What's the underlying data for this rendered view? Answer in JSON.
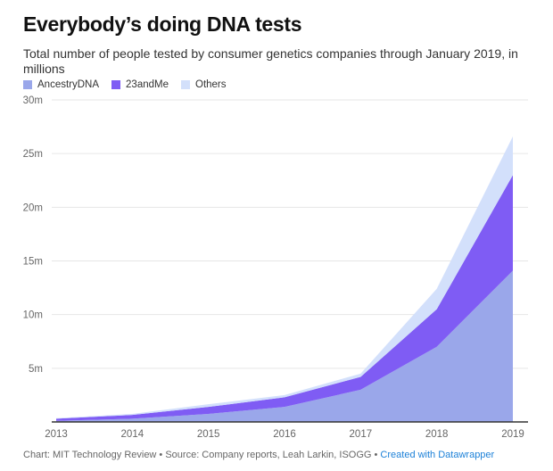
{
  "chart_data": {
    "type": "area",
    "stacked": true,
    "title": "Everybody’s doing DNA tests",
    "subtitle": "Total number of people tested by consumer genetics companies through January 2019, in millions",
    "x": [
      "2013",
      "2014",
      "2015",
      "2016",
      "2017",
      "2018",
      "2019"
    ],
    "series": [
      {
        "name": "AncestryDNA",
        "color": "#9aa7ea",
        "values": [
          0.1,
          0.3,
          0.75,
          1.4,
          3.0,
          7.0,
          14.1
        ]
      },
      {
        "name": "23andMe",
        "color": "#7f5cf4",
        "values": [
          0.2,
          0.35,
          0.65,
          0.9,
          1.2,
          3.5,
          8.9
        ]
      },
      {
        "name": "Others",
        "color": "#d3e0fb",
        "values": [
          0.05,
          0.1,
          0.25,
          0.2,
          0.3,
          1.9,
          3.6
        ]
      }
    ],
    "ylim": [
      0,
      30
    ],
    "yticks": [
      5,
      10,
      15,
      20,
      25,
      30
    ],
    "ytick_labels": [
      "5m",
      "10m",
      "15m",
      "20m",
      "25m",
      "30m"
    ],
    "grid": true,
    "legend_placement": "top-left"
  },
  "footer": {
    "credit": "Chart: MIT Technology Review • Source: Company reports, Leah Larkin, ISOGG • ",
    "link": "Created with Datawrapper"
  }
}
